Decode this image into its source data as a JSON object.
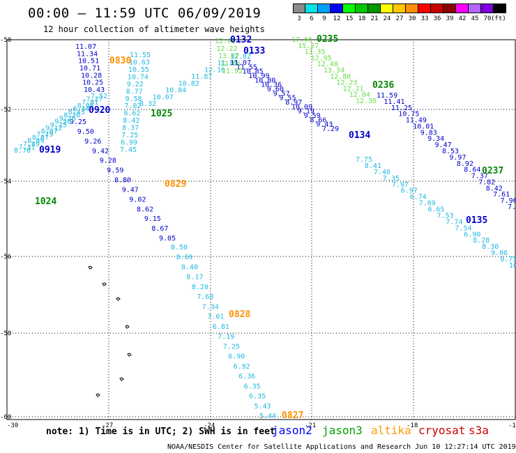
{
  "header": {
    "title": "00:00 – 11:59 UTC 06/09/2019",
    "subtitle": "12 hour collection of altimeter wave heights"
  },
  "legend": {
    "colors": [
      "#8c8c8c",
      "#00e6e6",
      "#00a0ff",
      "#0000ff",
      "#00ff00",
      "#00c800",
      "#009600",
      "#ffff00",
      "#ffc800",
      "#ff9000",
      "#ff0000",
      "#c80000",
      "#8c0000",
      "#ff00ff",
      "#b464ff",
      "#7b00dc",
      "#000000"
    ],
    "labels": [
      "3",
      "6",
      "9",
      "12",
      "15",
      "18",
      "21",
      "24",
      "27",
      "30",
      "33",
      "36",
      "39",
      "42",
      "45",
      "70",
      "(ft)"
    ]
  },
  "axes": {
    "lat_labels": [
      "-50",
      "-52",
      "-54",
      "-56",
      "-58",
      "-60"
    ],
    "lon_labels": [
      "-30",
      "-27",
      "-24",
      "-21",
      "-18",
      "-15"
    ]
  },
  "tracks": [
    {
      "label": "0132",
      "color": "#0000cc",
      "label_color": "#0000cc"
    },
    {
      "label": "0133",
      "color": "#0000cc",
      "label_color": "#0000cc"
    }
  ],
  "track_labels": [
    {
      "text": "0132",
      "color": "#0000cc"
    },
    {
      "text": "0133",
      "color": "#0000cc"
    },
    {
      "text": "0235",
      "color": "#008800"
    },
    {
      "text": "0236",
      "color": "#008800"
    },
    {
      "text": "0237",
      "color": "#008800"
    },
    {
      "text": "0134",
      "color": "#0000cc"
    },
    {
      "text": "0135",
      "color": "#0000cc"
    },
    {
      "text": "0920",
      "color": "#0000cc"
    },
    {
      "text": "0919",
      "color": "#0000cc"
    },
    {
      "text": "1025",
      "color": "#008800"
    },
    {
      "text": "1024",
      "color": "#008800"
    },
    {
      "text": "0830",
      "color": "#ff9000"
    },
    {
      "text": "0829",
      "color": "#ff9000"
    },
    {
      "text": "0828",
      "color": "#ff9000"
    },
    {
      "text": "0827",
      "color": "#ff9000"
    }
  ],
  "wave_values": {
    "track_a": [
      "11.07",
      "11.34",
      "10.51",
      "10.71",
      "10.28",
      "10.25",
      "10.43",
      "9.25",
      "9.50",
      "9.26",
      "9.42",
      "9.28",
      "9.59",
      "8.80",
      "9.47",
      "9.02",
      "8.62",
      "9.15",
      "8.67",
      "9.05",
      "8.50",
      "8.69",
      "8.40",
      "8.17",
      "8.20",
      "7.68",
      "7.34",
      "7.01",
      "6.81",
      "7.19",
      "7.25",
      "6.90",
      "6.92",
      "6.36",
      "6.35",
      "6.35",
      "5.43",
      "5.44"
    ],
    "track_b": [
      "8.70",
      "7.31",
      "7.89",
      "8.09",
      "8.07",
      "7.79",
      "8.67",
      "9.12",
      "9.25",
      "9.50",
      "9.26",
      "8.26",
      "8.43",
      "8.34",
      "8.06",
      "7.81",
      "7.27",
      "7.52"
    ],
    "track_c": [
      "11.55",
      "10.63",
      "10.55",
      "10.74",
      "9.22",
      "8.77",
      "9.58",
      "7.82",
      "8.62",
      "8.42",
      "8.37",
      "7.25",
      "6.99",
      "7.45",
      "8.32",
      "10.07",
      "10.84",
      "10.82",
      "11.87",
      "12.16",
      "11.85",
      "12.82"
    ],
    "track_d": [
      "11.07",
      "11.55",
      "10.85",
      "10.99",
      "10.80",
      "10.36",
      "9.60",
      "9.57",
      "9.55",
      "8.97",
      "10.09",
      "9.19",
      "9.59",
      "8.66",
      "9.43",
      "7.29",
      "7.75",
      "8.41",
      "7.40",
      "7.35",
      "7.97",
      "6.97",
      "6.74",
      "7.09",
      "6.65",
      "7.53",
      "7.74",
      "7.54",
      "6.90",
      "8.28",
      "8.30",
      "9.06",
      "9.75",
      "10"
    ],
    "track_e": [
      "17.66",
      "15.27",
      "13.35",
      "12.95",
      "12.40",
      "13.34",
      "12.80",
      "12.23",
      "12.21",
      "12.04",
      "12.36",
      "11.59",
      "11.41",
      "11.25",
      "10.75",
      "11.49",
      "10.01",
      "9.83",
      "9.34",
      "9.47",
      "8.53",
      "9.97",
      "8.92",
      "8.64",
      "7.37",
      "7.82",
      "8.42",
      "7.61",
      "7.96",
      "7."
    ],
    "track_f": [
      "12.06",
      "12.22",
      "13.07",
      "12.51",
      "11.92"
    ]
  },
  "footer": {
    "note": "note: 1) Time is in UTC; 2) SWH is in feet",
    "satellites": [
      {
        "name": "jason2",
        "color": "#0000ff"
      },
      {
        "name": "jason3",
        "color": "#00a000"
      },
      {
        "name": "altika",
        "color": "#ff9900"
      },
      {
        "name": "cryosat",
        "color": "#cc0000"
      },
      {
        "name": "s3a",
        "color": "#cc0000"
      }
    ],
    "credit": "NOAA/NESDIS Center for Satellite Applications and Research    Jun 10 12:27:14 UTC 2019"
  }
}
